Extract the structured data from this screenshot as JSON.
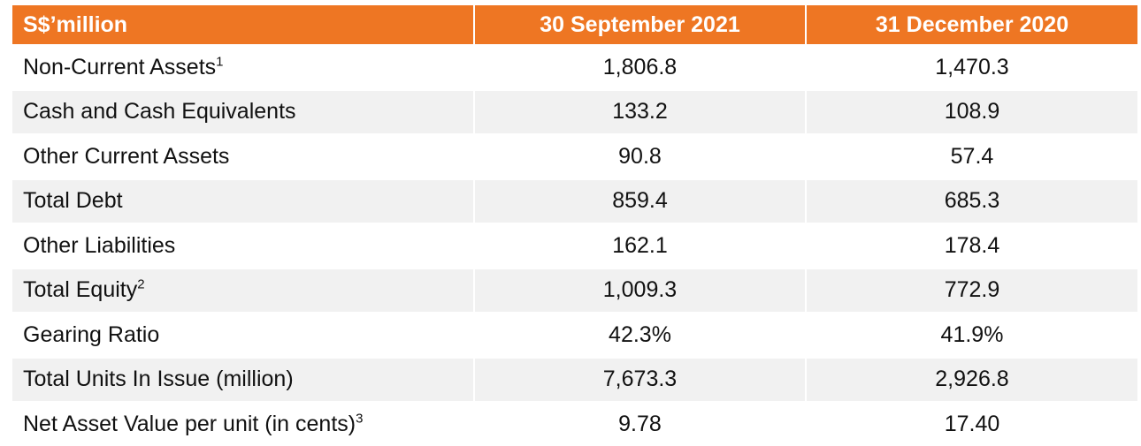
{
  "table": {
    "headers": [
      "S$’million",
      "30 September 2021",
      "31 December 2020"
    ],
    "rows": [
      {
        "label": "Non-Current Assets",
        "note": "1",
        "values": [
          "1,806.8",
          "1,470.3"
        ]
      },
      {
        "label": "Cash and Cash Equivalents",
        "note": "",
        "values": [
          "133.2",
          "108.9"
        ]
      },
      {
        "label": "Other Current Assets",
        "note": "",
        "values": [
          "90.8",
          "57.4"
        ]
      },
      {
        "label": "Total Debt",
        "note": "",
        "values": [
          "859.4",
          "685.3"
        ]
      },
      {
        "label": "Other Liabilities",
        "note": "",
        "values": [
          "162.1",
          "178.4"
        ]
      },
      {
        "label": "Total Equity",
        "note": "2",
        "values": [
          "1,009.3",
          "772.9"
        ]
      },
      {
        "label": "Gearing Ratio",
        "note": "",
        "values": [
          "42.3%",
          "41.9%"
        ]
      },
      {
        "label": "Total Units In Issue (million)",
        "note": "",
        "values": [
          "7,673.3",
          "2,926.8"
        ]
      },
      {
        "label": "Net Asset Value per unit (in cents)",
        "note": "3",
        "values": [
          "9.78",
          "17.40"
        ]
      }
    ]
  },
  "colors": {
    "header_bg": "#ee7623",
    "header_text": "#ffffff",
    "row_alt_bg": "#f1f1f1"
  }
}
